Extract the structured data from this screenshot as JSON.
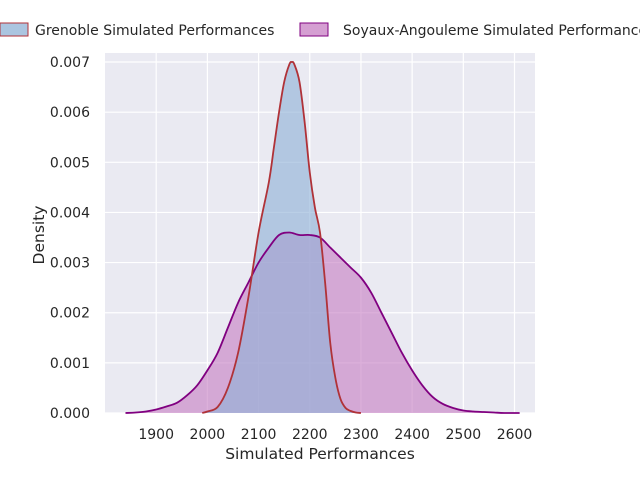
{
  "chart_data": {
    "type": "area",
    "subtype": "kde",
    "xlabel": "Simulated Performances",
    "ylabel": "Density",
    "xlim": [
      1800,
      2640
    ],
    "ylim": [
      0,
      0.00718
    ],
    "x_ticks": [
      1900,
      2000,
      2100,
      2200,
      2300,
      2400,
      2500,
      2600
    ],
    "x_tick_labels": [
      "1900",
      "2000",
      "2100",
      "2200",
      "2300",
      "2400",
      "2500",
      "2600"
    ],
    "y_ticks": [
      0,
      0.001,
      0.002,
      0.003,
      0.004,
      0.005,
      0.006,
      0.007
    ],
    "y_tick_labels": [
      "0.000",
      "0.001",
      "0.002",
      "0.003",
      "0.004",
      "0.005",
      "0.006",
      "0.007"
    ],
    "grid": true,
    "legend_position": "top",
    "series": [
      {
        "name": "Grenoble Simulated Performances",
        "fill_color": "#8fb2d6",
        "line_color": "#b03238",
        "x": [
          1990,
          2000,
          2020,
          2040,
          2060,
          2080,
          2100,
          2120,
          2130,
          2140,
          2150,
          2160,
          2165,
          2170,
          2180,
          2190,
          2200,
          2210,
          2220,
          2230,
          2240,
          2250,
          2260,
          2270,
          2280,
          2290,
          2300
        ],
        "y": [
          0.0,
          3e-05,
          0.00012,
          0.0005,
          0.0012,
          0.0023,
          0.0036,
          0.0046,
          0.0053,
          0.006,
          0.0066,
          0.00695,
          0.007,
          0.00695,
          0.0066,
          0.0058,
          0.0048,
          0.0041,
          0.0036,
          0.0026,
          0.0014,
          0.0007,
          0.00028,
          0.0001,
          4e-05,
          1e-05,
          0.0
        ]
      },
      {
        "name": "Soyaux-Angouleme Simulated Performances",
        "fill_color": "#c77fc3",
        "line_color": "#800080",
        "x": [
          1840,
          1860,
          1880,
          1900,
          1920,
          1940,
          1960,
          1980,
          2000,
          2020,
          2040,
          2060,
          2080,
          2100,
          2120,
          2140,
          2160,
          2180,
          2200,
          2220,
          2240,
          2260,
          2280,
          2300,
          2320,
          2340,
          2360,
          2380,
          2400,
          2420,
          2440,
          2460,
          2480,
          2500,
          2520,
          2540,
          2560,
          2580,
          2610
        ],
        "y": [
          0.0,
          1e-05,
          3e-05,
          7e-05,
          0.00013,
          0.0002,
          0.00035,
          0.00055,
          0.00085,
          0.0012,
          0.0017,
          0.0022,
          0.0026,
          0.003,
          0.0033,
          0.00355,
          0.0036,
          0.00355,
          0.00355,
          0.0035,
          0.0033,
          0.0031,
          0.0029,
          0.0027,
          0.0024,
          0.002,
          0.0016,
          0.0012,
          0.00085,
          0.00055,
          0.00032,
          0.00018,
          0.0001,
          5e-05,
          3e-05,
          2e-05,
          1e-05,
          0.0,
          0.0
        ]
      }
    ]
  }
}
